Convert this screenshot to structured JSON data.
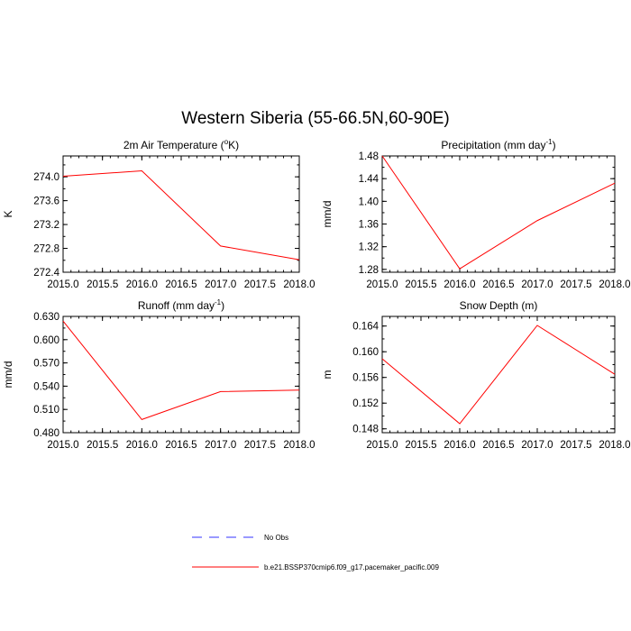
{
  "title": "Western Siberia (55-66.5N,60-90E)",
  "colors": {
    "model": "#ff0000",
    "obs": "#3333ff",
    "axis": "#000000"
  },
  "legend": {
    "obs_label": "No Obs",
    "model_label": "b.e21.BSSP370cmip6.f09_g17.pacemaker_pacific.009"
  },
  "chart_data": [
    {
      "type": "line",
      "title_main": "2m Air Temperature (",
      "title_sup": "o",
      "title_end": "K)",
      "ylabel": "K",
      "xlabel": "",
      "x": [
        2015,
        2016,
        2017,
        2018
      ],
      "xlim": [
        2015,
        2018
      ],
      "xticks": [
        "2015.0",
        "2015.5",
        "2016.0",
        "2016.5",
        "2017.0",
        "2017.5",
        "2018.0"
      ],
      "ylim": [
        272.4,
        274.35
      ],
      "yticks": [
        "272.4",
        "272.8",
        "273.2",
        "273.6",
        "274.0"
      ],
      "series": [
        {
          "values": [
            274.01,
            274.1,
            272.84,
            272.61
          ]
        }
      ]
    },
    {
      "type": "line",
      "title_main": "Precipitation (mm day",
      "title_sup": "-1",
      "title_end": ")",
      "ylabel": "mm/d",
      "xlabel": "",
      "x": [
        2015,
        2016,
        2017,
        2018
      ],
      "xlim": [
        2015,
        2018
      ],
      "xticks": [
        "2015.0",
        "2015.5",
        "2016.0",
        "2016.5",
        "2017.0",
        "2017.5",
        "2018.0"
      ],
      "ylim": [
        1.275,
        1.48
      ],
      "yticks": [
        "1.28",
        "1.32",
        "1.36",
        "1.40",
        "1.44",
        "1.48"
      ],
      "series": [
        {
          "values": [
            1.48,
            1.281,
            1.366,
            1.432
          ]
        }
      ]
    },
    {
      "type": "line",
      "title_main": "Runoff (mm day",
      "title_sup": "-1",
      "title_end": ")",
      "ylabel": "mm/d",
      "xlabel": "",
      "x": [
        2015,
        2016,
        2017,
        2018
      ],
      "xlim": [
        2015,
        2018
      ],
      "xticks": [
        "2015.0",
        "2015.5",
        "2016.0",
        "2016.5",
        "2017.0",
        "2017.5",
        "2018.0"
      ],
      "ylim": [
        0.48,
        0.63
      ],
      "yticks": [
        "0.480",
        "0.510",
        "0.540",
        "0.570",
        "0.600",
        "0.630"
      ],
      "series": [
        {
          "values": [
            0.624,
            0.497,
            0.533,
            0.535
          ]
        }
      ]
    },
    {
      "type": "line",
      "title_main": "Snow Depth (m)",
      "title_sup": "",
      "title_end": "",
      "ylabel": "m",
      "xlabel": "",
      "x": [
        2015,
        2016,
        2017,
        2018
      ],
      "xlim": [
        2015,
        2018
      ],
      "xticks": [
        "2015.0",
        "2015.5",
        "2016.0",
        "2016.5",
        "2017.0",
        "2017.5",
        "2018.0"
      ],
      "ylim": [
        0.1474,
        0.1655
      ],
      "yticks": [
        "0.148",
        "0.152",
        "0.156",
        "0.160",
        "0.164"
      ],
      "series": [
        {
          "values": [
            0.1589,
            0.1488,
            0.1641,
            0.1565
          ]
        }
      ]
    }
  ]
}
